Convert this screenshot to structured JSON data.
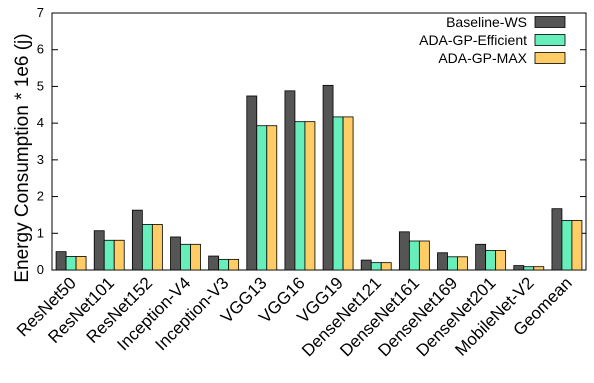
{
  "chart_data": {
    "type": "bar",
    "title": "",
    "xlabel": "",
    "ylabel": "Energy Consumption * 1e6 (j)",
    "ylim": [
      0,
      7
    ],
    "yticks": [
      0,
      1,
      2,
      3,
      4,
      5,
      6,
      7
    ],
    "grid": false,
    "legend_position": "top-right",
    "categories": [
      "ResNet50",
      "ResNet101",
      "ResNet152",
      "Inception-V4",
      "Inception-V3",
      "VGG13",
      "VGG16",
      "VGG19",
      "DenseNet121",
      "DenseNet161",
      "DenseNet169",
      "DenseNet201",
      "MobileNet-V2",
      "Geomean"
    ],
    "series": [
      {
        "name": "Baseline-WS",
        "color": "#555555",
        "values": [
          0.5,
          1.07,
          1.63,
          0.9,
          0.38,
          4.74,
          4.88,
          5.03,
          0.27,
          1.04,
          0.47,
          0.7,
          0.12,
          1.67
        ]
      },
      {
        "name": "ADA-GP-Efficient",
        "color": "#66eebb",
        "values": [
          0.37,
          0.81,
          1.24,
          0.7,
          0.29,
          3.93,
          4.04,
          4.17,
          0.2,
          0.79,
          0.36,
          0.53,
          0.09,
          1.35
        ]
      },
      {
        "name": "ADA-GP-MAX",
        "color": "#ffcc66",
        "values": [
          0.37,
          0.81,
          1.24,
          0.7,
          0.29,
          3.93,
          4.04,
          4.17,
          0.2,
          0.79,
          0.36,
          0.53,
          0.09,
          1.35
        ]
      }
    ]
  }
}
